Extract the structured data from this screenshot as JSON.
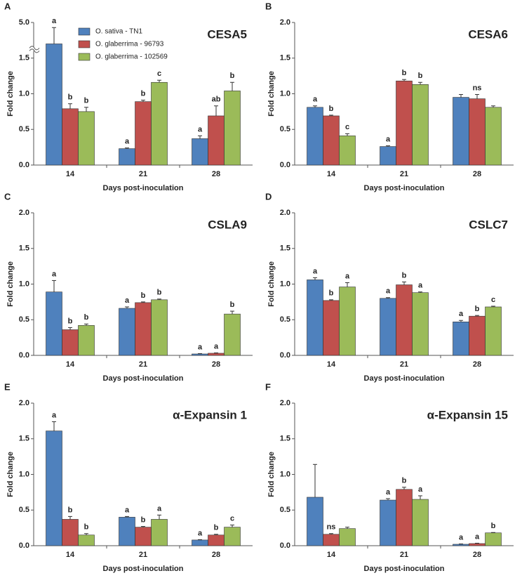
{
  "chart_data": [
    {
      "type": "bar",
      "panel": "A",
      "title": "CESA5",
      "ylabel": "Fold change",
      "xlabel": "Days post-inoculation",
      "categories": [
        "14",
        "21",
        "28"
      ],
      "ylim": [
        0,
        5
      ],
      "broken_axis": true,
      "yticks": [
        {
          "value": 0,
          "label": "0.0"
        },
        {
          "value": 0.5,
          "label": "0.5"
        },
        {
          "value": 1,
          "label": "1.0"
        },
        {
          "value": 1.5,
          "label": "1.5"
        },
        {
          "value": 5,
          "label": "5.0"
        }
      ],
      "legend": true,
      "series": [
        {
          "name": "O. sativa - TN1",
          "color": "#4f81bd",
          "values": [
            2.9,
            0.23,
            0.37
          ],
          "errors": [
            1.6,
            0.01,
            0.04
          ],
          "labels": [
            "a",
            "a",
            "a"
          ]
        },
        {
          "name": "O. glaberrima - 96793",
          "color": "#c0504d",
          "values": [
            0.79,
            0.89,
            0.69
          ],
          "errors": [
            0.07,
            0.02,
            0.14
          ],
          "labels": [
            "b",
            "b",
            "ab"
          ]
        },
        {
          "name": "O. glaberrima - 102569",
          "color": "#9bbb59",
          "values": [
            0.75,
            1.16,
            1.04
          ],
          "errors": [
            0.06,
            0.03,
            0.12
          ],
          "labels": [
            "b",
            "c",
            "b"
          ]
        }
      ]
    },
    {
      "type": "bar",
      "panel": "B",
      "title": "CESA6",
      "ylabel": "Fold change",
      "xlabel": "Days post-inoculation",
      "categories": [
        "14",
        "21",
        "28"
      ],
      "ylim": [
        0,
        2
      ],
      "yticks": [
        {
          "value": 0,
          "label": "0.0"
        },
        {
          "value": 0.5,
          "label": "0.5"
        },
        {
          "value": 1,
          "label": "1.0"
        },
        {
          "value": 1.5,
          "label": "1.5"
        },
        {
          "value": 2,
          "label": "2.0"
        }
      ],
      "series": [
        {
          "color": "#4f81bd",
          "values": [
            0.81,
            0.26,
            0.95
          ],
          "errors": [
            0.02,
            0.01,
            0.04
          ],
          "labels": [
            "a",
            "a",
            null
          ]
        },
        {
          "color": "#c0504d",
          "values": [
            0.69,
            1.18,
            0.93
          ],
          "errors": [
            0.01,
            0.02,
            0.06
          ],
          "labels": [
            "b",
            "b",
            "ns"
          ]
        },
        {
          "color": "#9bbb59",
          "values": [
            0.41,
            1.13,
            0.81
          ],
          "errors": [
            0.03,
            0.03,
            0.02
          ],
          "labels": [
            "c",
            "b",
            null
          ]
        }
      ]
    },
    {
      "type": "bar",
      "panel": "C",
      "title": "CSLA9",
      "ylabel": "Fold change",
      "xlabel": "Days post-inoculation",
      "categories": [
        "14",
        "21",
        "28"
      ],
      "ylim": [
        0,
        2
      ],
      "yticks": [
        {
          "value": 0,
          "label": "0.0"
        },
        {
          "value": 0.5,
          "label": "0.5"
        },
        {
          "value": 1,
          "label": "1.0"
        },
        {
          "value": 1.5,
          "label": "1.5"
        },
        {
          "value": 2,
          "label": "2.0"
        }
      ],
      "series": [
        {
          "color": "#4f81bd",
          "values": [
            0.89,
            0.66,
            0.02
          ],
          "errors": [
            0.16,
            0.02,
            0.005
          ],
          "labels": [
            "a",
            "a",
            "a"
          ]
        },
        {
          "color": "#c0504d",
          "values": [
            0.36,
            0.74,
            0.03
          ],
          "errors": [
            0.03,
            0.01,
            0.005
          ],
          "labels": [
            "b",
            "b",
            "a"
          ]
        },
        {
          "color": "#9bbb59",
          "values": [
            0.42,
            0.78,
            0.58
          ],
          "errors": [
            0.02,
            0.01,
            0.04
          ],
          "labels": [
            "b",
            "b",
            "b"
          ]
        }
      ]
    },
    {
      "type": "bar",
      "panel": "D",
      "title": "CSLC7",
      "ylabel": "Fold change",
      "xlabel": "Days post-inoculation",
      "categories": [
        "14",
        "21",
        "28"
      ],
      "ylim": [
        0,
        2
      ],
      "yticks": [
        {
          "value": 0,
          "label": "0.0"
        },
        {
          "value": 0.5,
          "label": "0.5"
        },
        {
          "value": 1,
          "label": "1.0"
        },
        {
          "value": 1.5,
          "label": "1.5"
        },
        {
          "value": 2,
          "label": "2.0"
        }
      ],
      "series": [
        {
          "color": "#4f81bd",
          "values": [
            1.06,
            0.8,
            0.47
          ],
          "errors": [
            0.03,
            0.01,
            0.02
          ],
          "labels": [
            "a",
            "a",
            "a"
          ]
        },
        {
          "color": "#c0504d",
          "values": [
            0.77,
            0.99,
            0.55
          ],
          "errors": [
            0.01,
            0.04,
            0.01
          ],
          "labels": [
            "b",
            "b",
            "b"
          ]
        },
        {
          "color": "#9bbb59",
          "values": [
            0.96,
            0.88,
            0.68
          ],
          "errors": [
            0.06,
            0.01,
            0.01
          ],
          "labels": [
            "a",
            "a",
            "c"
          ]
        }
      ]
    },
    {
      "type": "bar",
      "panel": "E",
      "title": "α-Expansin 1",
      "ylabel": "Fold change",
      "xlabel": "Days post-inoculation",
      "categories": [
        "14",
        "21",
        "28"
      ],
      "ylim": [
        0,
        2
      ],
      "yticks": [
        {
          "value": 0,
          "label": "0.0"
        },
        {
          "value": 0.5,
          "label": "0.5"
        },
        {
          "value": 1,
          "label": "1.0"
        },
        {
          "value": 1.5,
          "label": "1.5"
        },
        {
          "value": 2,
          "label": "2.0"
        }
      ],
      "series": [
        {
          "color": "#4f81bd",
          "values": [
            1.61,
            0.4,
            0.08
          ],
          "errors": [
            0.13,
            0.01,
            0.005
          ],
          "labels": [
            "a",
            "a",
            "a"
          ]
        },
        {
          "color": "#c0504d",
          "values": [
            0.37,
            0.26,
            0.15
          ],
          "errors": [
            0.04,
            0.01,
            0.01
          ],
          "labels": [
            "b",
            "b",
            "b"
          ]
        },
        {
          "color": "#9bbb59",
          "values": [
            0.15,
            0.37,
            0.26
          ],
          "errors": [
            0.02,
            0.06,
            0.03
          ],
          "labels": [
            "b",
            "a",
            "c"
          ]
        }
      ]
    },
    {
      "type": "bar",
      "panel": "F",
      "title": "α-Expansin 15",
      "ylabel": "Fold change",
      "xlabel": "Days post-inoculation",
      "categories": [
        "14",
        "21",
        "28"
      ],
      "ylim": [
        0,
        2
      ],
      "yticks": [
        {
          "value": 0,
          "label": "0.0"
        },
        {
          "value": 0.5,
          "label": "0.5"
        },
        {
          "value": 1,
          "label": "1.0"
        },
        {
          "value": 1.5,
          "label": "1.5"
        },
        {
          "value": 2,
          "label": "2.0"
        }
      ],
      "series": [
        {
          "color": "#4f81bd",
          "values": [
            0.68,
            0.64,
            0.02
          ],
          "errors": [
            0.46,
            0.02,
            0.005
          ],
          "labels": [
            null,
            "a",
            "a"
          ]
        },
        {
          "color": "#c0504d",
          "values": [
            0.16,
            0.79,
            0.03
          ],
          "errors": [
            0.01,
            0.03,
            0.005
          ],
          "labels": [
            "ns",
            "b",
            "a"
          ]
        },
        {
          "color": "#9bbb59",
          "values": [
            0.24,
            0.65,
            0.18
          ],
          "errors": [
            0.02,
            0.05,
            0.005
          ],
          "labels": [
            null,
            "a",
            "b"
          ]
        }
      ]
    }
  ]
}
